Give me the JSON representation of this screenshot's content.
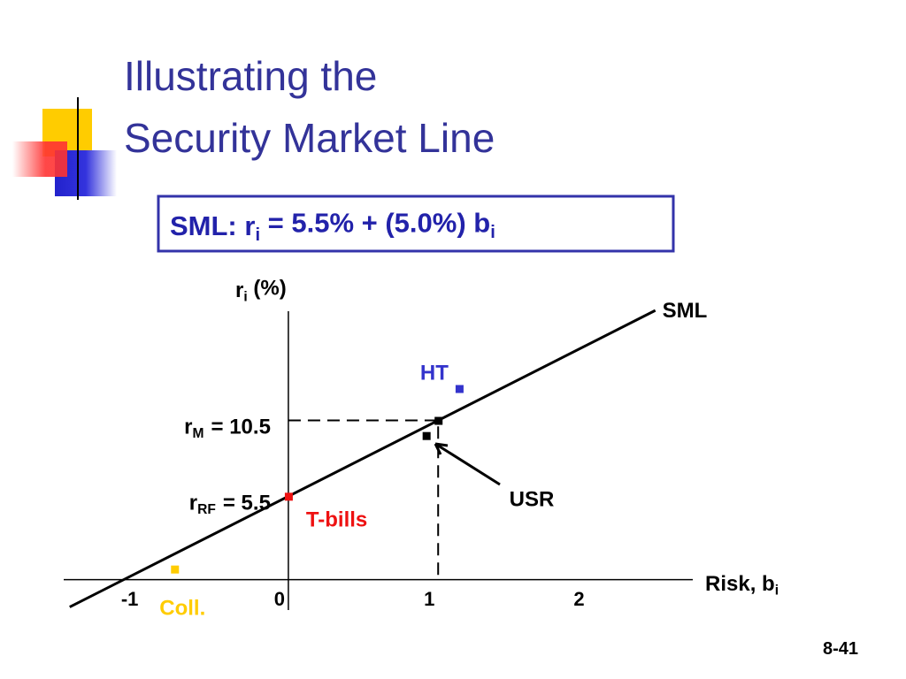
{
  "chart_data": {
    "type": "line",
    "title_lines": [
      "Illustrating the",
      "Security Market Line"
    ],
    "formula": [
      "SML:  r",
      "i",
      " = 5.5% + (5.0%) b",
      "i"
    ],
    "y_label": [
      "r",
      "i",
      " (%)"
    ],
    "x_label": [
      "Risk, b",
      "i"
    ],
    "xlim": [
      -1.5,
      2.7
    ],
    "ylim": [
      -2,
      17.7
    ],
    "xticks": [
      -1,
      0,
      1,
      2
    ],
    "yticks": [
      {
        "value": 10.5,
        "label": "= 10.5"
      },
      {
        "value": 5.5,
        "label": "=  5.5"
      }
    ],
    "ytick_symbols": [
      [
        "r",
        "M"
      ],
      [
        "r",
        "RF"
      ]
    ],
    "series": [
      {
        "name": "SML",
        "color": "#000000",
        "x": [
          -1.46,
          2.45
        ],
        "values": [
          -1.8,
          17.75
        ]
      }
    ],
    "points": [
      {
        "label": "HT",
        "color": "#3333cc",
        "x": 1.14,
        "y": 12.6
      },
      {
        "color": "#000000",
        "x": 1.0,
        "y": 10.5
      },
      {
        "label": "USR",
        "color": "#000000",
        "x": 0.92,
        "y": 9.5
      },
      {
        "label": "T-bills",
        "color": "#ee1111",
        "x": 0.0,
        "y": 5.5
      },
      {
        "label": "Coll.",
        "color": "#ffcc00",
        "x": -0.76,
        "y": 0.7
      }
    ],
    "page_number": "8-41"
  }
}
